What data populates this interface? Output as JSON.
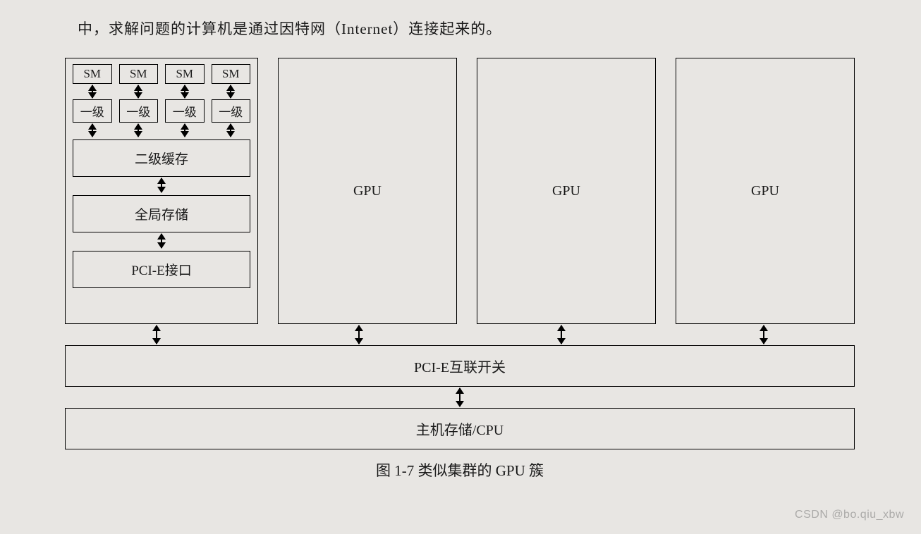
{
  "top_text": "中，求解问题的计算机是通过因特网（Internet）连接起来的。",
  "detailed_gpu": {
    "sm_label": "SM",
    "l1_label": "一级",
    "l2_label": "二级缓存",
    "global_mem_label": "全局存储",
    "pcie_label": "PCI-E接口",
    "sm_count": 4
  },
  "gpu_label": "GPU",
  "simple_gpu_count": 3,
  "switch_label": "PCI-E互联开关",
  "host_label": "主机存储/CPU",
  "caption": "图 1-7  类似集群的 GPU 簇",
  "watermark": "CSDN @bo.qiu_xbw",
  "style": {
    "background_color": "#e8e6e3",
    "border_color": "#000000",
    "text_color": "#1a1a1a",
    "top_font_size": 21,
    "box_font_size": 20,
    "small_box_font_size": 17,
    "caption_font_size": 21,
    "arrow_small_h": 18,
    "arrow_med_h": 20,
    "arrow_big_h": 26
  }
}
